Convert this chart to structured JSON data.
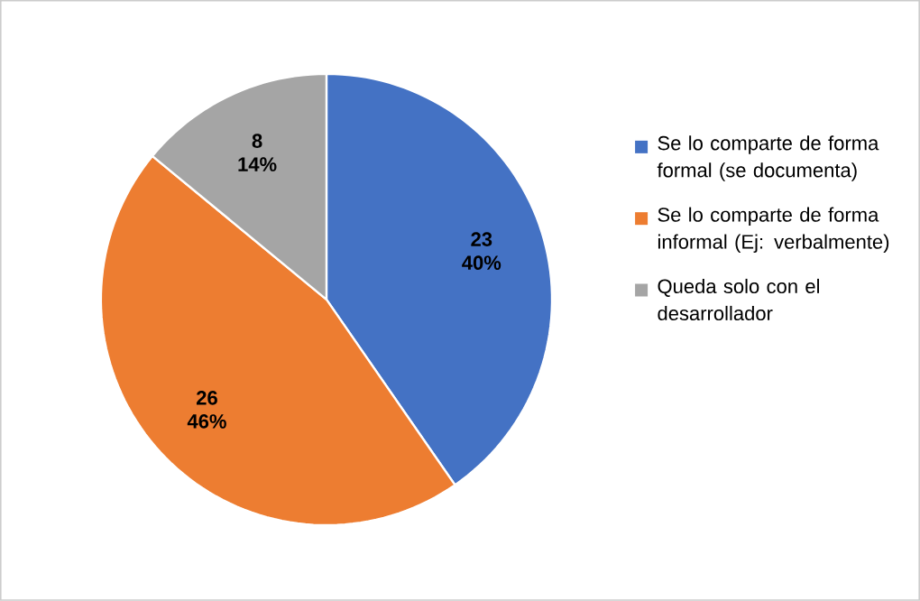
{
  "chart_data": {
    "type": "pie",
    "categories": [
      "Se lo comparte de forma formal (se documenta)",
      "Se lo comparte de forma informal (Ej: verbalmente)",
      "Queda solo con el desarrollador"
    ],
    "values": [
      23,
      26,
      8
    ],
    "colors": [
      "#4472c4",
      "#ed7d31",
      "#a5a5a5"
    ],
    "value_labels": [
      "23 40%",
      "26 46%",
      "8 14%"
    ],
    "legend": "right"
  }
}
